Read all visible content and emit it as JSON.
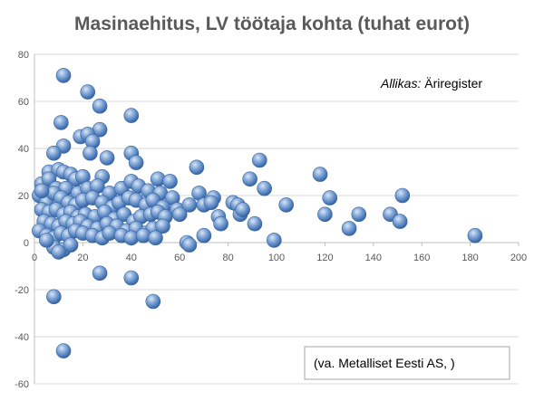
{
  "chart_data": {
    "type": "scatter",
    "title": "Masinaehitus,  LV töötaja kohta (tuhat eurot)",
    "xlabel": "",
    "ylabel": "",
    "xlim": [
      0,
      200
    ],
    "ylim": [
      -60,
      80
    ],
    "x_ticks": [
      0,
      20,
      40,
      60,
      80,
      100,
      120,
      140,
      160,
      180,
      200
    ],
    "y_ticks": [
      -60,
      -40,
      -20,
      0,
      20,
      40,
      60,
      80
    ],
    "grid": "horizontal",
    "marker_color": "#4f81bd",
    "points": [
      [
        12,
        71
      ],
      [
        22,
        64
      ],
      [
        27,
        58
      ],
      [
        40,
        54
      ],
      [
        11,
        51
      ],
      [
        27,
        48
      ],
      [
        19,
        45
      ],
      [
        22,
        46
      ],
      [
        24,
        43
      ],
      [
        12,
        41
      ],
      [
        8,
        38
      ],
      [
        23,
        38
      ],
      [
        30,
        36
      ],
      [
        40,
        38
      ],
      [
        42,
        34
      ],
      [
        67,
        32
      ],
      [
        93,
        35
      ],
      [
        118,
        29
      ],
      [
        6,
        30
      ],
      [
        10,
        31
      ],
      [
        12,
        30
      ],
      [
        15,
        29
      ],
      [
        17,
        27
      ],
      [
        20,
        28
      ],
      [
        28,
        28
      ],
      [
        89,
        27
      ],
      [
        95,
        23
      ],
      [
        51,
        27
      ],
      [
        56,
        26
      ],
      [
        3,
        25
      ],
      [
        6,
        27
      ],
      [
        9,
        23
      ],
      [
        13,
        23
      ],
      [
        18,
        21
      ],
      [
        22,
        23
      ],
      [
        26,
        24
      ],
      [
        31,
        21
      ],
      [
        36,
        23
      ],
      [
        40,
        26
      ],
      [
        43,
        24
      ],
      [
        47,
        22
      ],
      [
        52,
        21
      ],
      [
        57,
        19
      ],
      [
        68,
        21
      ],
      [
        74,
        19
      ],
      [
        2,
        20
      ],
      [
        5,
        17
      ],
      [
        8,
        21
      ],
      [
        11,
        19
      ],
      [
        14,
        17
      ],
      [
        17,
        16
      ],
      [
        20,
        18
      ],
      [
        24,
        19
      ],
      [
        28,
        17
      ],
      [
        32,
        15
      ],
      [
        35,
        17
      ],
      [
        39,
        19
      ],
      [
        42,
        18
      ],
      [
        46,
        16
      ],
      [
        49,
        18
      ],
      [
        53,
        15
      ],
      [
        59,
        14
      ],
      [
        64,
        16
      ],
      [
        70,
        16
      ],
      [
        73,
        17
      ],
      [
        82,
        17
      ],
      [
        84,
        16
      ],
      [
        104,
        16
      ],
      [
        122,
        19
      ],
      [
        152,
        20
      ],
      [
        3,
        14
      ],
      [
        6,
        13
      ],
      [
        9,
        14
      ],
      [
        12,
        12
      ],
      [
        15,
        13
      ],
      [
        18,
        11
      ],
      [
        21,
        12
      ],
      [
        25,
        11
      ],
      [
        29,
        13
      ],
      [
        33,
        10
      ],
      [
        37,
        12
      ],
      [
        41,
        9
      ],
      [
        44,
        11
      ],
      [
        48,
        12
      ],
      [
        51,
        13
      ],
      [
        54,
        11
      ],
      [
        60,
        12
      ],
      [
        76,
        11
      ],
      [
        77,
        8
      ],
      [
        85,
        12
      ],
      [
        86,
        14
      ],
      [
        91,
        8
      ],
      [
        120,
        12
      ],
      [
        134,
        12
      ],
      [
        147,
        12
      ],
      [
        151,
        9
      ],
      [
        4,
        9
      ],
      [
        7,
        8
      ],
      [
        10,
        7
      ],
      [
        13,
        9
      ],
      [
        16,
        8
      ],
      [
        19,
        9
      ],
      [
        22,
        7
      ],
      [
        26,
        6
      ],
      [
        30,
        8
      ],
      [
        34,
        7
      ],
      [
        38,
        5
      ],
      [
        42,
        6
      ],
      [
        46,
        4
      ],
      [
        49,
        6
      ],
      [
        53,
        7
      ],
      [
        2,
        5
      ],
      [
        5,
        3
      ],
      [
        8,
        2
      ],
      [
        11,
        4
      ],
      [
        14,
        3
      ],
      [
        17,
        5
      ],
      [
        20,
        4
      ],
      [
        24,
        3
      ],
      [
        28,
        2
      ],
      [
        31,
        4
      ],
      [
        36,
        3
      ],
      [
        40,
        2
      ],
      [
        45,
        3
      ],
      [
        50,
        2
      ],
      [
        70,
        3
      ],
      [
        63,
        0
      ],
      [
        64,
        -1
      ],
      [
        99,
        1
      ],
      [
        130,
        6
      ],
      [
        182,
        3
      ],
      [
        8,
        -2
      ],
      [
        12,
        -3
      ],
      [
        15,
        -1
      ],
      [
        10,
        -4
      ],
      [
        27,
        -13
      ],
      [
        40,
        -15
      ],
      [
        8,
        -23
      ],
      [
        49,
        -25
      ],
      [
        12,
        -46
      ],
      [
        5,
        1
      ],
      [
        3,
        22
      ]
    ],
    "annotations": [
      {
        "label": "Allikas:",
        "text": " Äriregister"
      },
      {
        "text": "(va. Metalliset Eesti AS, )"
      }
    ]
  }
}
